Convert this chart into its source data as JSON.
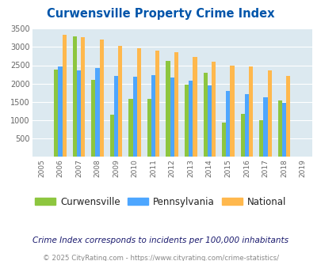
{
  "title": "Curwensville Property Crime Index",
  "years": [
    2005,
    2006,
    2007,
    2008,
    2009,
    2010,
    2011,
    2012,
    2013,
    2014,
    2015,
    2016,
    2017,
    2018,
    2019
  ],
  "curwensville": [
    null,
    2380,
    3300,
    2110,
    1140,
    1580,
    1570,
    2620,
    1960,
    2300,
    940,
    1170,
    1000,
    1540,
    null
  ],
  "pennsylvania": [
    null,
    2470,
    2370,
    2430,
    2210,
    2190,
    2230,
    2160,
    2070,
    1940,
    1790,
    1710,
    1630,
    1480,
    null
  ],
  "national": [
    null,
    3340,
    3260,
    3210,
    3040,
    2960,
    2910,
    2860,
    2720,
    2590,
    2490,
    2460,
    2370,
    2210,
    null
  ],
  "curwensville_color": "#8dc63f",
  "pennsylvania_color": "#4da6ff",
  "national_color": "#ffb84d",
  "bg_color": "#dce9f0",
  "title_color": "#0055aa",
  "ylim": [
    0,
    3500
  ],
  "yticks": [
    0,
    500,
    1000,
    1500,
    2000,
    2500,
    3000,
    3500
  ],
  "footnote": "Crime Index corresponds to incidents per 100,000 inhabitants",
  "copyright": "© 2025 CityRating.com - https://www.cityrating.com/crime-statistics/"
}
